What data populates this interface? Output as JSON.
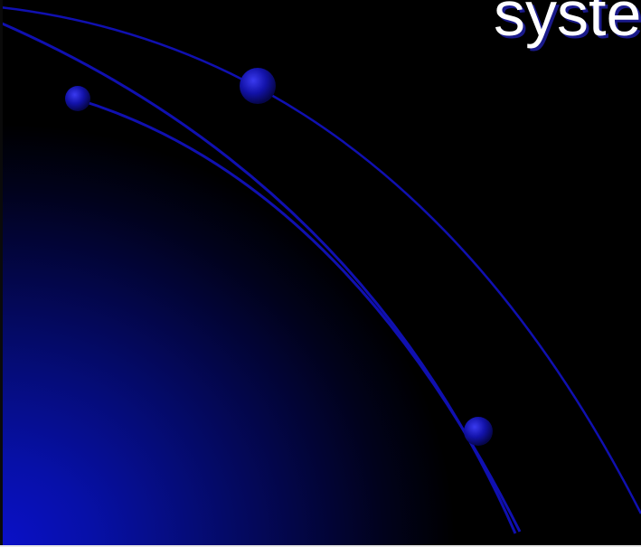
{
  "slide": {
    "title_fragment": "syste"
  },
  "colors": {
    "background": "#000000",
    "accent_blue": "#1414c8",
    "gradient_blue": "#0a10c8",
    "title_text": "#ffffff",
    "title_shadow": "#1a1a8a"
  }
}
